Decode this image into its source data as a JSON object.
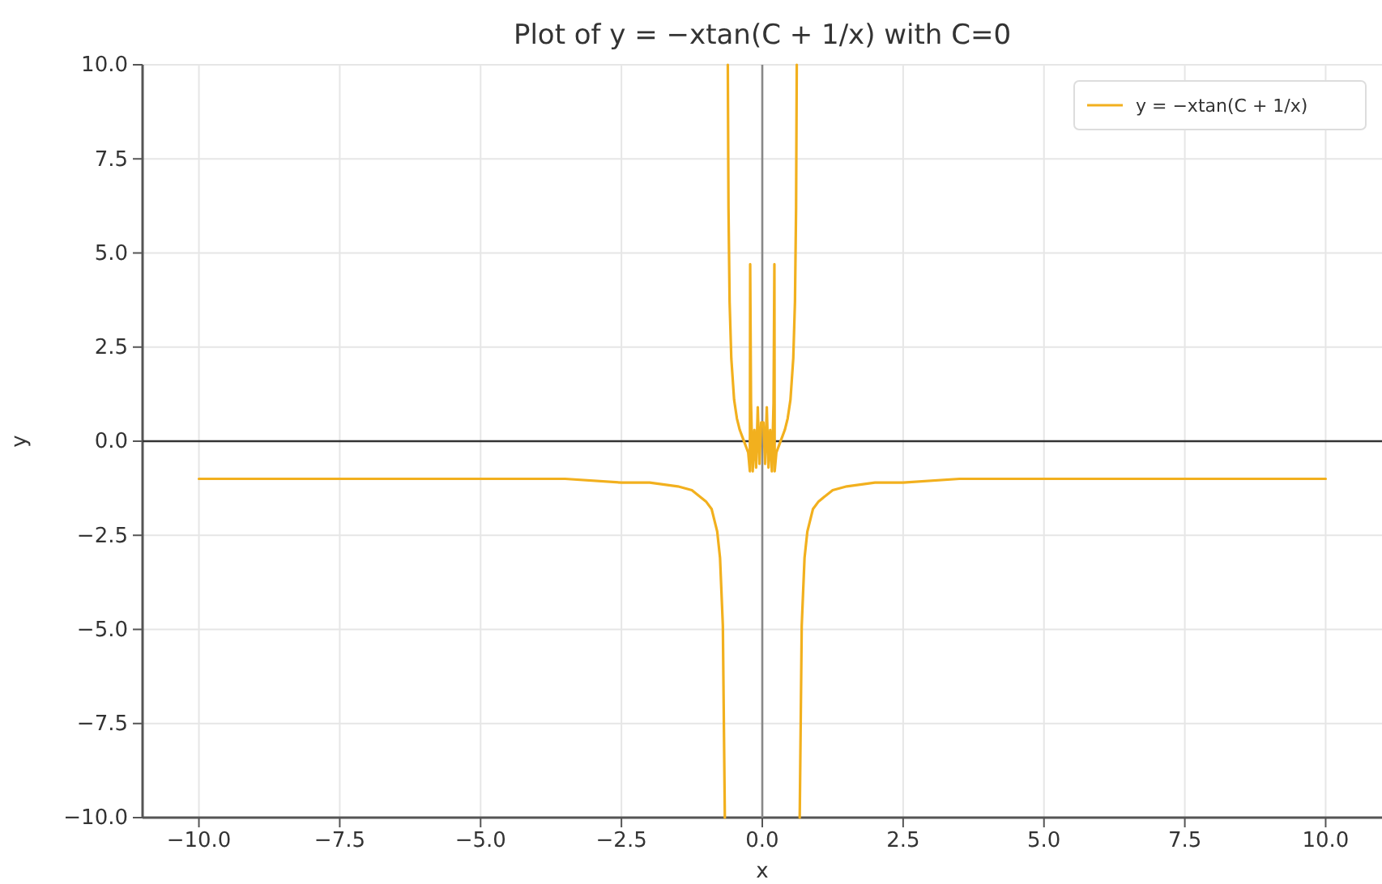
{
  "chart_data": {
    "type": "line",
    "title": "Plot of y = −xtan(C + 1/x) with C=0",
    "xlabel": "x",
    "ylabel": "y",
    "xlim": [
      -11,
      11
    ],
    "xticks": [
      {
        "value": -10,
        "label": "−10.0"
      },
      {
        "value": -7.5,
        "label": "−7.5"
      },
      {
        "value": -5,
        "label": "−5.0"
      },
      {
        "value": -2.5,
        "label": "−2.5"
      },
      {
        "value": 0,
        "label": "0.0"
      },
      {
        "value": 2.5,
        "label": "2.5"
      },
      {
        "value": 5,
        "label": "5.0"
      },
      {
        "value": 7.5,
        "label": "7.5"
      },
      {
        "value": 10,
        "label": "10.0"
      }
    ],
    "ylim": [
      -10,
      10
    ],
    "yticks": [
      {
        "value": -10,
        "label": "−10.0"
      },
      {
        "value": -7.5,
        "label": "−7.5"
      },
      {
        "value": -5,
        "label": "−5.0"
      },
      {
        "value": -2.5,
        "label": "−2.5"
      },
      {
        "value": 0,
        "label": "0.0"
      },
      {
        "value": 2.5,
        "label": "2.5"
      },
      {
        "value": 5,
        "label": "5.0"
      },
      {
        "value": 7.5,
        "label": "7.5"
      },
      {
        "value": 10,
        "label": "10.0"
      }
    ],
    "grid": true,
    "legend": "top right",
    "line_style": "solid",
    "marker": "none",
    "ref_lines": [
      {
        "axis": "y",
        "value": 0,
        "color": "#333333"
      },
      {
        "axis": "x",
        "value": 0,
        "color": "#888888"
      }
    ],
    "series": [
      {
        "name": "y = −xtan(C + 1/x)",
        "color": "#f2b01e",
        "x": [
          -10,
          -7.5,
          -5,
          -3.5,
          -2.5,
          -2,
          -1.5,
          -1.25,
          -1,
          -0.9,
          -0.8,
          -0.75,
          -0.7,
          -0.6645,
          -0.64,
          -0.612,
          -0.6,
          -0.58,
          -0.55,
          -0.5,
          -0.45,
          -0.4,
          -0.35,
          -0.3,
          -0.25,
          -0.22,
          -0.215,
          -0.2,
          -0.17,
          -0.14,
          -0.11,
          -0.08,
          -0.05,
          -0.02,
          0.02,
          0.05,
          0.08,
          0.11,
          0.14,
          0.17,
          0.2,
          0.215,
          0.22,
          0.25,
          0.3,
          0.35,
          0.4,
          0.45,
          0.5,
          0.55,
          0.58,
          0.6,
          0.612,
          0.64,
          0.6645,
          0.7,
          0.75,
          0.8,
          0.9,
          1,
          1.25,
          1.5,
          2,
          2.5,
          3.5,
          5,
          7.5,
          10
        ],
        "values": [
          -1.0,
          -1.0,
          -1.0,
          -1.0,
          -1.1,
          -1.1,
          -1.2,
          -1.3,
          -1.6,
          -1.8,
          -2.4,
          -3.1,
          -4.9,
          -10,
          null,
          10,
          6.2,
          3.7,
          2.2,
          1.1,
          0.6,
          0.3,
          0.1,
          -0.1,
          -0.3,
          -0.8,
          4.7,
          1.0,
          -0.8,
          0.3,
          -0.7,
          0.9,
          -0.6,
          0.5,
          0.5,
          -0.6,
          0.9,
          -0.7,
          0.3,
          -0.8,
          1.0,
          4.7,
          -0.8,
          -0.3,
          -0.1,
          0.1,
          0.3,
          0.6,
          1.1,
          2.2,
          3.7,
          6.2,
          10,
          null,
          -10,
          -4.9,
          -3.1,
          -2.4,
          -1.8,
          -1.6,
          -1.3,
          -1.2,
          -1.1,
          -1.1,
          -1.0,
          -1.0,
          -1.0,
          -1.0
        ]
      }
    ]
  }
}
